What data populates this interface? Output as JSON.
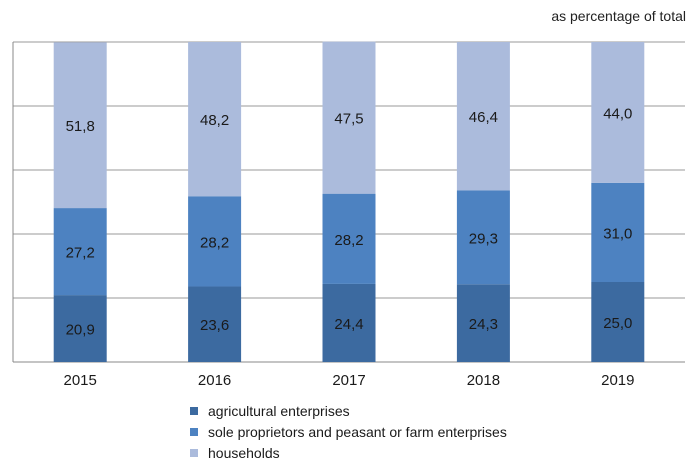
{
  "chart_data": {
    "type": "bar",
    "stacked": true,
    "unit_note": "as percentage of total",
    "categories": [
      "2015",
      "2016",
      "2017",
      "2018",
      "2019"
    ],
    "ylim": [
      0,
      100
    ],
    "grid": true,
    "legend_position": "bottom",
    "series": [
      {
        "name": "agricultural enterprises",
        "color": "#3c6aa0",
        "values": [
          20.9,
          23.6,
          24.4,
          24.3,
          25.0
        ],
        "labels": [
          "20,9",
          "23,6",
          "24,4",
          "24,3",
          "25,0"
        ]
      },
      {
        "name": "sole proprietors and peasant or farm enterprises",
        "color": "#4d82c1",
        "values": [
          27.2,
          28.2,
          28.2,
          29.3,
          31.0
        ],
        "labels": [
          "27,2",
          "28,2",
          "28,2",
          "29,3",
          "31,0"
        ]
      },
      {
        "name": "households",
        "color": "#abbbdc",
        "values": [
          51.8,
          48.2,
          47.5,
          46.4,
          44.0
        ],
        "labels": [
          "51,8",
          "48,2",
          "47,5",
          "46,4",
          "44,0"
        ]
      }
    ]
  }
}
